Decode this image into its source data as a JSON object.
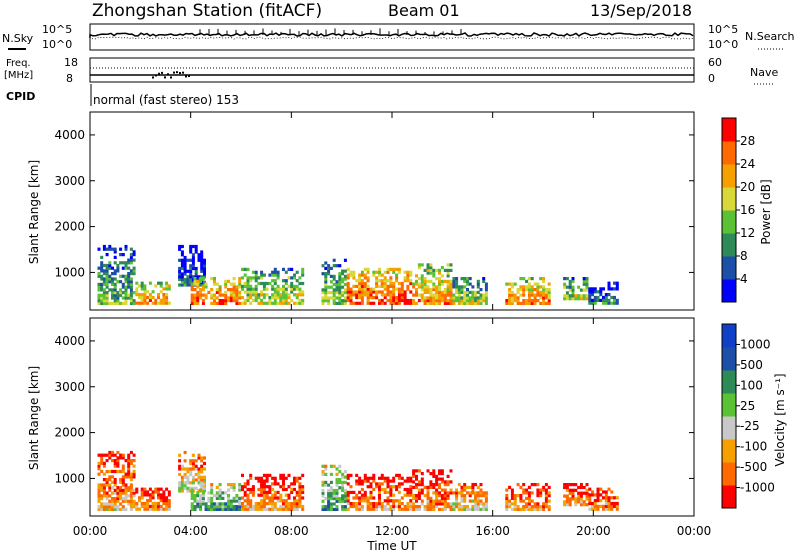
{
  "header": {
    "station": "Zhongshan Station (fitACF)",
    "beam": "Beam 01",
    "date": "13/Sep/2018",
    "cpid_text": "normal (fast stereo) 153"
  },
  "meta_panels": {
    "left_labels": [
      "N.Sky",
      "Freq.",
      "[MHz]",
      "CPID"
    ],
    "right_labels": [
      "N.Search",
      "Nave"
    ],
    "noise_ticks_left": [
      "10^5",
      "10^0"
    ],
    "noise_ticks_right": [
      "10^5",
      "10^0"
    ],
    "freq_ticks_left": [
      "18",
      "8"
    ],
    "nave_ticks_right": [
      "60",
      "0"
    ]
  },
  "colors": {
    "power_scale": [
      "#0000ff",
      "#1e4fa8",
      "#2e8b57",
      "#5bc236",
      "#d8d838",
      "#f5a000",
      "#ff6a00",
      "#ff0000"
    ],
    "velocity_scale": [
      "#ff0000",
      "#ff6a00",
      "#f5a000",
      "#c8c8c8",
      "#5bc236",
      "#2e8b57",
      "#1e4fa8",
      "#1040c8"
    ]
  },
  "chart_data": [
    {
      "type": "heatmap",
      "title": "",
      "xlabel": "Time UT",
      "ylabel": "Slant Range [km]",
      "xlim": [
        "00:00",
        "24:00"
      ],
      "ylim": [
        180,
        4500
      ],
      "x_ticks": [
        "00:00",
        "04:00",
        "08:00",
        "12:00",
        "16:00",
        "20:00",
        "00:00"
      ],
      "y_ticks": [
        1000,
        2000,
        3000,
        4000
      ],
      "colorbar": {
        "label": "Power [dB]",
        "ticks": [
          4,
          8,
          12,
          16,
          20,
          24,
          28
        ],
        "range": [
          0,
          30
        ]
      },
      "clusters": [
        {
          "t0": 0.3,
          "t1": 1.8,
          "r0": 300,
          "r1": 1600,
          "level": 0.45
        },
        {
          "t0": 1.8,
          "t1": 3.2,
          "r0": 300,
          "r1": 800,
          "level": 0.75
        },
        {
          "t0": 3.5,
          "t1": 4.6,
          "r0": 700,
          "r1": 1600,
          "level": 0.25
        },
        {
          "t0": 4.0,
          "t1": 6.0,
          "r0": 300,
          "r1": 900,
          "level": 0.85
        },
        {
          "t0": 6.0,
          "t1": 8.5,
          "r0": 300,
          "r1": 1100,
          "level": 0.6
        },
        {
          "t0": 9.2,
          "t1": 10.2,
          "r0": 300,
          "r1": 1300,
          "level": 0.5
        },
        {
          "t0": 10.2,
          "t1": 12.8,
          "r0": 300,
          "r1": 1100,
          "level": 0.9
        },
        {
          "t0": 12.8,
          "t1": 14.4,
          "r0": 300,
          "r1": 1200,
          "level": 0.75
        },
        {
          "t0": 14.4,
          "t1": 15.8,
          "r0": 300,
          "r1": 900,
          "level": 0.55
        },
        {
          "t0": 16.5,
          "t1": 18.3,
          "r0": 300,
          "r1": 900,
          "level": 0.8
        },
        {
          "t0": 18.8,
          "t1": 19.8,
          "r0": 400,
          "r1": 900,
          "level": 0.55
        },
        {
          "t0": 19.8,
          "t1": 21.0,
          "r0": 300,
          "r1": 800,
          "level": 0.3
        }
      ]
    },
    {
      "type": "heatmap",
      "title": "",
      "xlabel": "Time UT",
      "ylabel": "Slant Range [km]",
      "xlim": [
        "00:00",
        "24:00"
      ],
      "ylim": [
        180,
        4500
      ],
      "x_ticks": [
        "00:00",
        "04:00",
        "08:00",
        "12:00",
        "16:00",
        "20:00",
        "00:00"
      ],
      "y_ticks": [
        1000,
        2000,
        3000,
        4000
      ],
      "colorbar": {
        "label": "Velocity [m s⁻¹]",
        "ticks": [
          1000,
          500,
          100,
          25,
          -25,
          -100,
          -500,
          -1000
        ]
      },
      "clusters": [
        {
          "t0": 0.3,
          "t1": 1.8,
          "r0": 300,
          "r1": 1600,
          "level": 0.35
        },
        {
          "t0": 1.8,
          "t1": 3.2,
          "r0": 300,
          "r1": 800,
          "level": 0.3
        },
        {
          "t0": 3.5,
          "t1": 4.6,
          "r0": 700,
          "r1": 1600,
          "level": 0.45
        },
        {
          "t0": 4.0,
          "t1": 6.0,
          "r0": 300,
          "r1": 900,
          "level": 0.7
        },
        {
          "t0": 6.0,
          "t1": 8.5,
          "r0": 300,
          "r1": 1100,
          "level": 0.3
        },
        {
          "t0": 9.2,
          "t1": 10.2,
          "r0": 300,
          "r1": 1300,
          "level": 0.7
        },
        {
          "t0": 10.2,
          "t1": 12.8,
          "r0": 300,
          "r1": 1100,
          "level": 0.3
        },
        {
          "t0": 12.8,
          "t1": 14.4,
          "r0": 300,
          "r1": 1200,
          "level": 0.3
        },
        {
          "t0": 14.4,
          "t1": 15.8,
          "r0": 300,
          "r1": 900,
          "level": 0.45
        },
        {
          "t0": 16.5,
          "t1": 18.3,
          "r0": 300,
          "r1": 900,
          "level": 0.3
        },
        {
          "t0": 18.8,
          "t1": 19.8,
          "r0": 400,
          "r1": 900,
          "level": 0.3
        },
        {
          "t0": 19.8,
          "t1": 21.0,
          "r0": 300,
          "r1": 800,
          "level": 0.3
        }
      ]
    }
  ]
}
